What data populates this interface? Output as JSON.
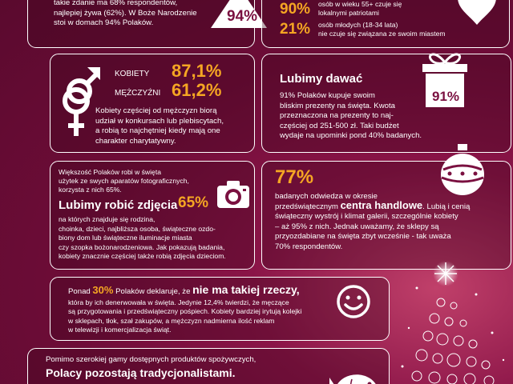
{
  "card1": {
    "text_lines": [
      "takie zdanie ma 68% respondentów,",
      "najlepiej żywa (62%). W Boże Narodzenie",
      "stoi w domach 94% Polaków."
    ],
    "tree_pct": "94%"
  },
  "card2": {
    "stat1_value": "90%",
    "stat1_lines": [
      "osób w wieku 55+ czuje się",
      "lokalnymi patriotami"
    ],
    "stat2_value": "21%",
    "stat2_lines": [
      "osób młodych (18-34 lata)",
      "nie czuje się związana ze swoim miastem"
    ]
  },
  "card3": {
    "women_label": "KOBIETY",
    "women_value": "87,1%",
    "men_label": "MĘŻCZYŹNI",
    "men_value": "61,2%",
    "text_lines": [
      "Kobiety częściej od mężczyzn biorą",
      "udział w konkursach lub plebiscytach,",
      "a robią to najchętniej kiedy mają one",
      "charakter charytatywny."
    ]
  },
  "card4": {
    "title": "Lubimy dawać",
    "text_lines": [
      "91% Polaków kupuje swoim",
      "bliskim prezenty na święta. Kwota",
      "przeznaczona na prezenty to naj-",
      "częściej od 251-500 zł. Taki budżet",
      "wydaje na upominki pond 40% badanych."
    ],
    "gift_pct": "91%"
  },
  "card5": {
    "intro_lines": [
      "Większość Polaków robi w święta",
      "użytek ze swych aparatów fotograficznych,",
      "korzysta z nich 65%."
    ],
    "pct": "65%",
    "title": "Lubimy robić zdjęcia",
    "text_lines": [
      "na których znajduje się rodzina,",
      "choinka, dzieci, najbliższa osoba, świąteczne ozdo-",
      "biony dom lub świąteczne iluminacje miasta",
      "czy szopka bożonarodzeniowa. Jak pokazują badania,",
      "kobiety znacznie częściej także robią zdjęcia dzieciom."
    ]
  },
  "card6": {
    "pct": "77%",
    "line1": "badanych odwiedza w okresie",
    "line2_pre": "przedświątecznym ",
    "line2_bold": "centra handlowe",
    "line2_post": ". Lubią i cenią",
    "text_lines": [
      "świąteczny wystrój i klimat galerii, szczególnie kobiety",
      "– aż 95% z nich. Jednak uważamy, że sklepy są",
      "przyozdabiane na święta zbyt wcześnie - tak uważa",
      "70% respondentów."
    ]
  },
  "card7": {
    "line1_pre": "Ponad ",
    "line1_pct": "30%",
    "line1_mid": " Polaków deklaruje, że ",
    "line1_bold": "nie ma takiej rzeczy,",
    "text_lines": [
      "która by ich denerwowała w święta. Jedynie 12,4% twierdzi, że męczące",
      "są przygotowania i przedświąteczny pośpiech. Kobiety bardziej irytują kolejki",
      "w sklepach, tłok, szał zakupów, a mężczyzn nadmierna ilość reklam",
      "w telewizji i komercjalizacja świąt."
    ]
  },
  "card8": {
    "line1": "Pomimo szerokiej gamy dostępnych produktów spożywczych,",
    "title": "Polacy pozostają tradycjonalistami."
  }
}
